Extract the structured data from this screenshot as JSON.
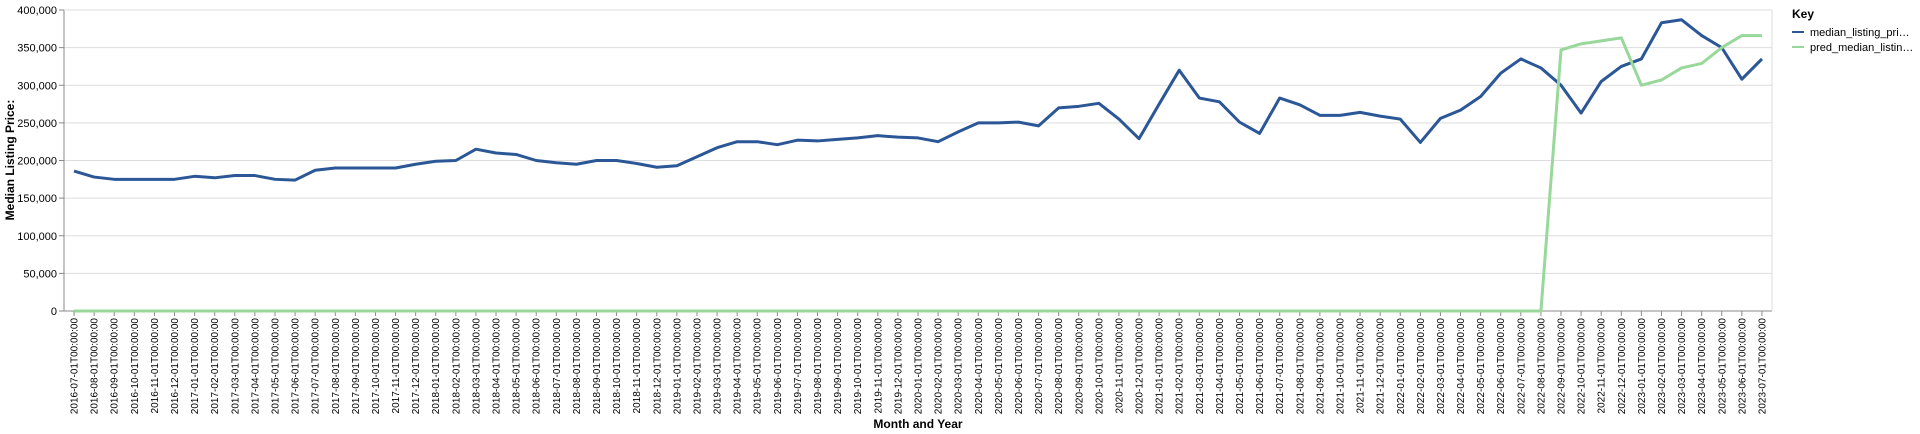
{
  "chart_data": {
    "type": "line",
    "x_label": "Month and Year",
    "y_label": "Median Listing Price:",
    "legend_title": "Key",
    "categories": [
      "2016-07-01T00:00:00",
      "2016-08-01T00:00:00",
      "2016-09-01T00:00:00",
      "2016-10-01T00:00:00",
      "2016-11-01T00:00:00",
      "2016-12-01T00:00:00",
      "2017-01-01T00:00:00",
      "2017-02-01T00:00:00",
      "2017-03-01T00:00:00",
      "2017-04-01T00:00:00",
      "2017-05-01T00:00:00",
      "2017-06-01T00:00:00",
      "2017-07-01T00:00:00",
      "2017-08-01T00:00:00",
      "2017-09-01T00:00:00",
      "2017-10-01T00:00:00",
      "2017-11-01T00:00:00",
      "2017-12-01T00:00:00",
      "2018-01-01T00:00:00",
      "2018-02-01T00:00:00",
      "2018-03-01T00:00:00",
      "2018-04-01T00:00:00",
      "2018-05-01T00:00:00",
      "2018-06-01T00:00:00",
      "2018-07-01T00:00:00",
      "2018-08-01T00:00:00",
      "2018-09-01T00:00:00",
      "2018-10-01T00:00:00",
      "2018-11-01T00:00:00",
      "2018-12-01T00:00:00",
      "2019-01-01T00:00:00",
      "2019-02-01T00:00:00",
      "2019-03-01T00:00:00",
      "2019-04-01T00:00:00",
      "2019-05-01T00:00:00",
      "2019-06-01T00:00:00",
      "2019-07-01T00:00:00",
      "2019-08-01T00:00:00",
      "2019-09-01T00:00:00",
      "2019-10-01T00:00:00",
      "2019-11-01T00:00:00",
      "2019-12-01T00:00:00",
      "2020-01-01T00:00:00",
      "2020-02-01T00:00:00",
      "2020-03-01T00:00:00",
      "2020-04-01T00:00:00",
      "2020-05-01T00:00:00",
      "2020-06-01T00:00:00",
      "2020-07-01T00:00:00",
      "2020-08-01T00:00:00",
      "2020-09-01T00:00:00",
      "2020-10-01T00:00:00",
      "2020-11-01T00:00:00",
      "2020-12-01T00:00:00",
      "2021-01-01T00:00:00",
      "2021-02-01T00:00:00",
      "2021-03-01T00:00:00",
      "2021-04-01T00:00:00",
      "2021-05-01T00:00:00",
      "2021-06-01T00:00:00",
      "2021-07-01T00:00:00",
      "2021-08-01T00:00:00",
      "2021-09-01T00:00:00",
      "2021-10-01T00:00:00",
      "2021-11-01T00:00:00",
      "2021-12-01T00:00:00",
      "2022-01-01T00:00:00",
      "2022-02-01T00:00:00",
      "2022-03-01T00:00:00",
      "2022-04-01T00:00:00",
      "2022-05-01T00:00:00",
      "2022-06-01T00:00:00",
      "2022-07-01T00:00:00",
      "2022-08-01T00:00:00",
      "2022-09-01T00:00:00",
      "2022-10-01T00:00:00",
      "2022-11-01T00:00:00",
      "2022-12-01T00:00:00",
      "2023-01-01T00:00:00",
      "2023-02-01T00:00:00",
      "2023-03-01T00:00:00",
      "2023-04-01T00:00:00",
      "2023-05-01T00:00:00",
      "2023-06-01T00:00:00",
      "2023-07-01T00:00:00"
    ],
    "series": [
      {
        "name": "median_listing_pri…",
        "color": "#2b5797",
        "values": [
          186000,
          178000,
          175000,
          175000,
          175000,
          175000,
          179000,
          177000,
          180000,
          180000,
          175000,
          174000,
          187000,
          190000,
          190000,
          190000,
          190000,
          195000,
          199000,
          200000,
          215000,
          210000,
          208000,
          200000,
          197000,
          195000,
          200000,
          200000,
          196000,
          191000,
          193000,
          205000,
          217000,
          225000,
          225000,
          221000,
          227000,
          226000,
          228000,
          230000,
          233000,
          231000,
          230000,
          225000,
          238000,
          250000,
          250000,
          251000,
          246000,
          270000,
          272000,
          276000,
          255000,
          229000,
          275000,
          320000,
          283000,
          278000,
          251000,
          236000,
          283000,
          274000,
          260000,
          260000,
          264000,
          259000,
          255000,
          224000,
          256000,
          267000,
          285000,
          316000,
          335000,
          323000,
          300000,
          263000,
          305000,
          325000,
          335000,
          383000,
          387000,
          366000,
          350000,
          308000,
          335000
        ]
      },
      {
        "name": "pred_median_listin…",
        "color": "#98d89a",
        "values": [
          0,
          0,
          0,
          0,
          0,
          0,
          0,
          0,
          0,
          0,
          0,
          0,
          0,
          0,
          0,
          0,
          0,
          0,
          0,
          0,
          0,
          0,
          0,
          0,
          0,
          0,
          0,
          0,
          0,
          0,
          0,
          0,
          0,
          0,
          0,
          0,
          0,
          0,
          0,
          0,
          0,
          0,
          0,
          0,
          0,
          0,
          0,
          0,
          0,
          0,
          0,
          0,
          0,
          0,
          0,
          0,
          0,
          0,
          0,
          0,
          0,
          0,
          0,
          0,
          0,
          0,
          0,
          0,
          0,
          0,
          0,
          0,
          0,
          0,
          347000,
          355000,
          359000,
          363000,
          300000,
          307000,
          323000,
          329000,
          350000,
          366000,
          366000
        ]
      }
    ],
    "ylim": [
      0,
      400000
    ],
    "yticks": [
      0,
      {
        "value": 50000,
        "label": "50,000"
      },
      {
        "value": 100000,
        "label": "100,000"
      },
      {
        "value": 150000,
        "label": "150,000"
      },
      {
        "value": 200000,
        "label": "200,000"
      },
      {
        "value": 250000,
        "label": "250,000"
      },
      {
        "value": 300000,
        "label": "300,000"
      },
      {
        "value": 350000,
        "label": "350,000"
      },
      {
        "value": 400000,
        "label": "400,000"
      }
    ],
    "grid": true,
    "legend": "top-right"
  }
}
